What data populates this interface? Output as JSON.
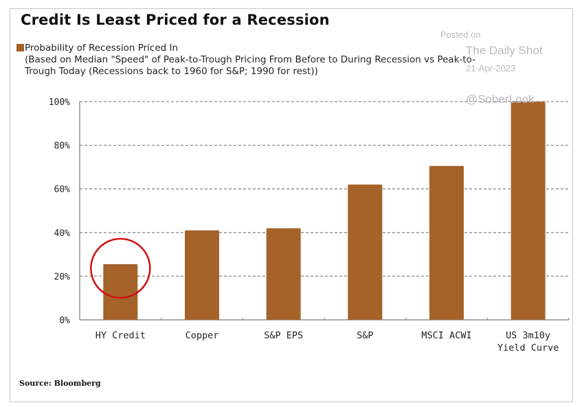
{
  "chart_data": {
    "type": "bar",
    "title": "Credit Is Least Priced for a Recession",
    "legend": {
      "label": "Probability of Recession Priced In",
      "subtitle_lines": [
        "(Based on Median \"Speed\" of Peak-to-Trough Pricing From Before to During Recession vs Peak-to-",
        "Trough Today (Recessions back to 1960 for S&P; 1990 for rest))"
      ],
      "placement": "top-left"
    },
    "categories": [
      [
        "HY Credit"
      ],
      [
        "Copper"
      ],
      [
        "S&P EPS"
      ],
      [
        "S&P"
      ],
      [
        "MSCI ACWI"
      ],
      [
        "US 3m10y",
        "Yield Curve"
      ]
    ],
    "series": [
      {
        "name": "Probability of Recession Priced In",
        "values": [
          25.5,
          41,
          42,
          62,
          70.5,
          100
        ],
        "color": "#a5632a"
      }
    ],
    "ylim": [
      0,
      100
    ],
    "yticks": [
      0,
      20,
      40,
      60,
      80,
      100
    ],
    "ytick_labels": [
      "0%",
      "20%",
      "40%",
      "60%",
      "80%",
      "100%"
    ],
    "grid": true,
    "xlabel": "",
    "ylabel": "",
    "annotations": [
      {
        "type": "circle",
        "target_category": "HY Credit",
        "color": "#d01010"
      }
    ],
    "source": "Source: Bloomberg"
  },
  "watermark": {
    "posted_on": "Posted on",
    "site": "The Daily Shot",
    "date": "21-Apr-2023",
    "handle": "@SoberLook"
  }
}
